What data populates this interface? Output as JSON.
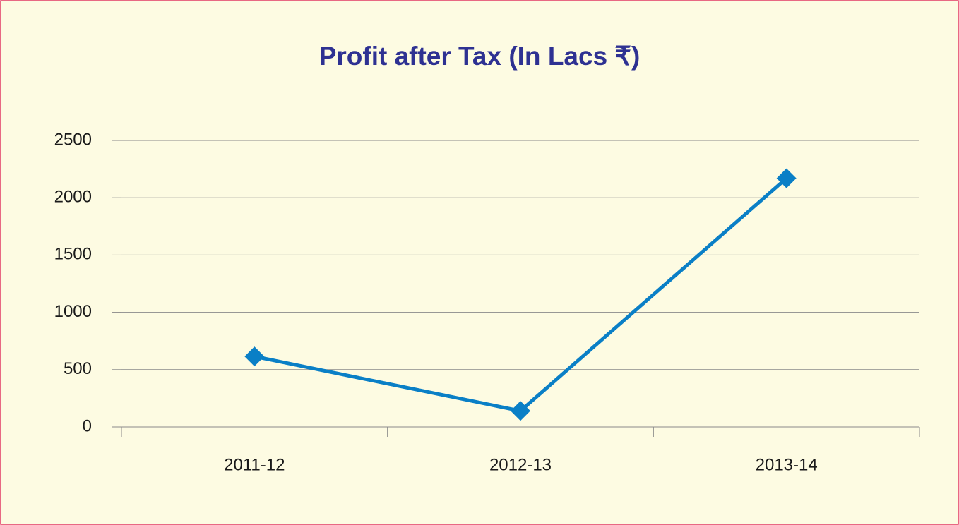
{
  "chart_data": {
    "type": "line",
    "title": "Profit after Tax (In Lacs ₹)",
    "categories": [
      "2011-12",
      "2012-13",
      "2013-14"
    ],
    "values": [
      615,
      140,
      2170
    ],
    "color": "#0a7fc6",
    "ylim": [
      0,
      2500
    ],
    "yticks": [
      0,
      500,
      1000,
      1500,
      2000,
      2500
    ],
    "grid": true
  }
}
